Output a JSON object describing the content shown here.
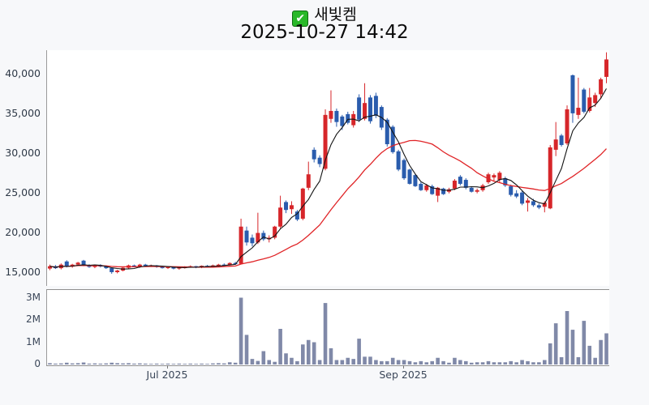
{
  "header": {
    "title": "새빛켐",
    "subtitle": "2025-10-27 14:42",
    "checkbox_glyph": "✔"
  },
  "chart_data": {
    "type": "candlestick_with_volume",
    "symbol": "새빛켐",
    "as_of": "2025-10-27 14:42",
    "last_price": 41800,
    "price_axis": {
      "tick_labels": [
        "40,000",
        "35,000",
        "30,000",
        "25,000",
        "20,000",
        "15,000"
      ],
      "tick_values": [
        40000,
        35000,
        30000,
        25000,
        20000,
        15000
      ],
      "min": 15000,
      "max": 40000
    },
    "volume_axis": {
      "tick_labels": [
        "3M",
        "2M",
        "1M",
        "0"
      ],
      "tick_values": [
        3,
        2,
        1,
        0
      ],
      "unit": "millions"
    },
    "x_axis": {
      "ticks": [
        {
          "label": "Jul 2025",
          "index": 21
        },
        {
          "label": "Sep 2025",
          "index": 63
        }
      ]
    },
    "moving_averages": [
      {
        "name": "fast-ma",
        "period": 5,
        "color": "#141414"
      },
      {
        "name": "slow-ma",
        "period": 20,
        "color": "#e02427"
      }
    ],
    "colors": {
      "up": "#d6262a",
      "down": "#2a5cad",
      "volume_bar": "#8089a8",
      "axis_text": "#2e3947"
    },
    "candles_format": [
      "open",
      "high",
      "low",
      "close",
      "volume_millions"
    ],
    "candles": [
      [
        15400,
        15900,
        15200,
        15700,
        0.06
      ],
      [
        15700,
        15850,
        15350,
        15450,
        0.04
      ],
      [
        15450,
        16050,
        15300,
        15900,
        0.05
      ],
      [
        16300,
        16450,
        15550,
        15650,
        0.08
      ],
      [
        15650,
        16000,
        15500,
        15900,
        0.05
      ],
      [
        15900,
        16250,
        15750,
        16150,
        0.06
      ],
      [
        16400,
        16500,
        15700,
        15800,
        0.09
      ],
      [
        15800,
        15950,
        15500,
        15600,
        0.04
      ],
      [
        15600,
        15900,
        15450,
        15850,
        0.05
      ],
      [
        15850,
        15950,
        15550,
        15650,
        0.04
      ],
      [
        15650,
        15800,
        15350,
        15450,
        0.05
      ],
      [
        15450,
        15550,
        14750,
        14950,
        0.08
      ],
      [
        14950,
        15250,
        14800,
        15150,
        0.06
      ],
      [
        15150,
        15600,
        15050,
        15500,
        0.05
      ],
      [
        15500,
        15900,
        15400,
        15800,
        0.06
      ],
      [
        15800,
        15900,
        15550,
        15650,
        0.04
      ],
      [
        15650,
        16000,
        15500,
        15900,
        0.05
      ],
      [
        15900,
        16000,
        15650,
        15750,
        0.04
      ],
      [
        15750,
        15900,
        15600,
        15800,
        0.03
      ],
      [
        15800,
        15850,
        15500,
        15600,
        0.04
      ],
      [
        15600,
        15750,
        15400,
        15500,
        0.03
      ],
      [
        15500,
        15700,
        15350,
        15600,
        0.04
      ],
      [
        15600,
        15650,
        15300,
        15400,
        0.03
      ],
      [
        15400,
        15650,
        15250,
        15550,
        0.04
      ],
      [
        15550,
        15700,
        15400,
        15600,
        0.03
      ],
      [
        15600,
        15800,
        15500,
        15700,
        0.04
      ],
      [
        15700,
        15750,
        15450,
        15550,
        0.03
      ],
      [
        15550,
        15800,
        15450,
        15750,
        0.04
      ],
      [
        15750,
        15850,
        15550,
        15650,
        0.03
      ],
      [
        15650,
        15900,
        15550,
        15800,
        0.05
      ],
      [
        15800,
        16000,
        15700,
        15900,
        0.06
      ],
      [
        15900,
        16050,
        15750,
        15850,
        0.05
      ],
      [
        15850,
        16200,
        15800,
        16100,
        0.1
      ],
      [
        16100,
        16250,
        15900,
        16000,
        0.08
      ],
      [
        16000,
        21700,
        15950,
        20700,
        3.0
      ],
      [
        20200,
        20700,
        18300,
        18700,
        1.33
      ],
      [
        19300,
        19700,
        18200,
        18600,
        0.25
      ],
      [
        18700,
        22450,
        18500,
        19900,
        0.16
      ],
      [
        19900,
        20200,
        18900,
        19100,
        0.6
      ],
      [
        19100,
        19600,
        18700,
        19300,
        0.2
      ],
      [
        19300,
        20800,
        19100,
        20700,
        0.12
      ],
      [
        20700,
        24600,
        20500,
        23100,
        1.6
      ],
      [
        23800,
        24000,
        22400,
        22800,
        0.5
      ],
      [
        22900,
        23900,
        22300,
        23400,
        0.3
      ],
      [
        22600,
        22800,
        21400,
        21600,
        0.15
      ],
      [
        21700,
        25600,
        21500,
        25500,
        0.9
      ],
      [
        25600,
        28900,
        25300,
        27300,
        1.1
      ],
      [
        30400,
        30700,
        28800,
        29200,
        1.0
      ],
      [
        29400,
        29700,
        28200,
        28600,
        0.2
      ],
      [
        28000,
        35500,
        27800,
        34800,
        2.76
      ],
      [
        34300,
        37900,
        33800,
        35300,
        0.73
      ],
      [
        35300,
        35600,
        33300,
        33900,
        0.2
      ],
      [
        34600,
        34800,
        32900,
        33400,
        0.2
      ],
      [
        34900,
        35200,
        33600,
        33800,
        0.3
      ],
      [
        33500,
        35300,
        33200,
        34900,
        0.25
      ],
      [
        37000,
        37400,
        33900,
        34200,
        1.16
      ],
      [
        34300,
        38800,
        34100,
        36300,
        0.35
      ],
      [
        37000,
        37300,
        33700,
        34000,
        0.35
      ],
      [
        37200,
        37600,
        34400,
        34700,
        0.2
      ],
      [
        35800,
        36000,
        32900,
        33200,
        0.15
      ],
      [
        34200,
        34400,
        30800,
        31100,
        0.15
      ],
      [
        33300,
        33500,
        29900,
        30100,
        0.3
      ],
      [
        30200,
        30400,
        27700,
        27900,
        0.2
      ],
      [
        29100,
        29300,
        26600,
        26800,
        0.2
      ],
      [
        27900,
        28000,
        26000,
        26100,
        0.15
      ],
      [
        27200,
        27300,
        25700,
        25800,
        0.1
      ],
      [
        26100,
        26300,
        25200,
        25300,
        0.15
      ],
      [
        25300,
        26100,
        25100,
        25900,
        0.1
      ],
      [
        25800,
        26000,
        24700,
        24800,
        0.15
      ],
      [
        24600,
        25700,
        23800,
        25600,
        0.3
      ],
      [
        25500,
        25600,
        24700,
        24800,
        0.15
      ],
      [
        25100,
        25600,
        24900,
        25400,
        0.08
      ],
      [
        25500,
        26700,
        25300,
        26500,
        0.3
      ],
      [
        27000,
        27200,
        25900,
        26100,
        0.2
      ],
      [
        26600,
        26800,
        25400,
        25600,
        0.15
      ],
      [
        25600,
        25800,
        25000,
        25100,
        0.08
      ],
      [
        25100,
        25500,
        24900,
        25300,
        0.1
      ],
      [
        25300,
        26100,
        25100,
        25900,
        0.1
      ],
      [
        26300,
        27500,
        26100,
        27300,
        0.15
      ],
      [
        26900,
        27400,
        26500,
        27200,
        0.1
      ],
      [
        26600,
        27700,
        26300,
        27500,
        0.1
      ],
      [
        26800,
        27000,
        25700,
        25900,
        0.1
      ],
      [
        25800,
        26000,
        24500,
        24700,
        0.15
      ],
      [
        24900,
        25300,
        24300,
        24500,
        0.1
      ],
      [
        25000,
        25200,
        23400,
        23600,
        0.2
      ],
      [
        23700,
        24300,
        22600,
        24000,
        0.15
      ],
      [
        23900,
        24200,
        23200,
        23400,
        0.1
      ],
      [
        23400,
        23600,
        22900,
        23100,
        0.1
      ],
      [
        23200,
        23900,
        22500,
        23700,
        0.2
      ],
      [
        23000,
        31000,
        22900,
        30700,
        0.95
      ],
      [
        30400,
        33900,
        29600,
        31700,
        1.85
      ],
      [
        32200,
        32400,
        30800,
        31000,
        0.33
      ],
      [
        31200,
        36000,
        31000,
        35500,
        2.4
      ],
      [
        39800,
        39900,
        33800,
        35000,
        1.56
      ],
      [
        34800,
        39500,
        34300,
        35700,
        0.33
      ],
      [
        38000,
        38200,
        35000,
        35200,
        1.96
      ],
      [
        35300,
        38200,
        35100,
        37000,
        0.84
      ],
      [
        36300,
        37600,
        35800,
        37300,
        0.3
      ],
      [
        37400,
        39500,
        36800,
        39300,
        1.1
      ],
      [
        39600,
        42700,
        38800,
        41800,
        1.4
      ]
    ]
  }
}
